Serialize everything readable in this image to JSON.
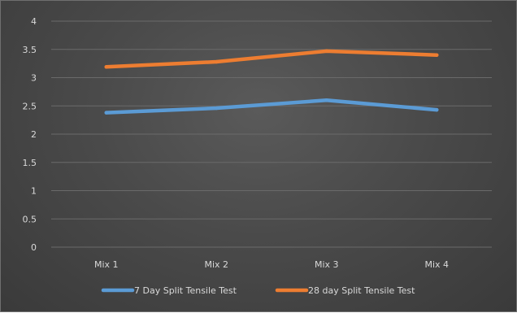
{
  "chart_data": {
    "type": "line",
    "title": "",
    "xlabel": "",
    "ylabel": "",
    "categories": [
      "Mix 1",
      "Mix 2",
      "Mix 3",
      "Mix 4"
    ],
    "series": [
      {
        "name": "7 Day Split Tensile Test",
        "values": [
          2.38,
          2.46,
          2.6,
          2.43
        ],
        "color": "#5b9bd5"
      },
      {
        "name": "28 day Split Tensile Test",
        "values": [
          3.19,
          3.28,
          3.47,
          3.4
        ],
        "color": "#ed7d31"
      }
    ],
    "ylim": [
      0,
      4
    ],
    "yticks": [
      "0",
      "0.5",
      "1",
      "1.5",
      "2",
      "2.5",
      "3",
      "3.5",
      "4"
    ],
    "grid": true,
    "legend_position": "bottom"
  }
}
